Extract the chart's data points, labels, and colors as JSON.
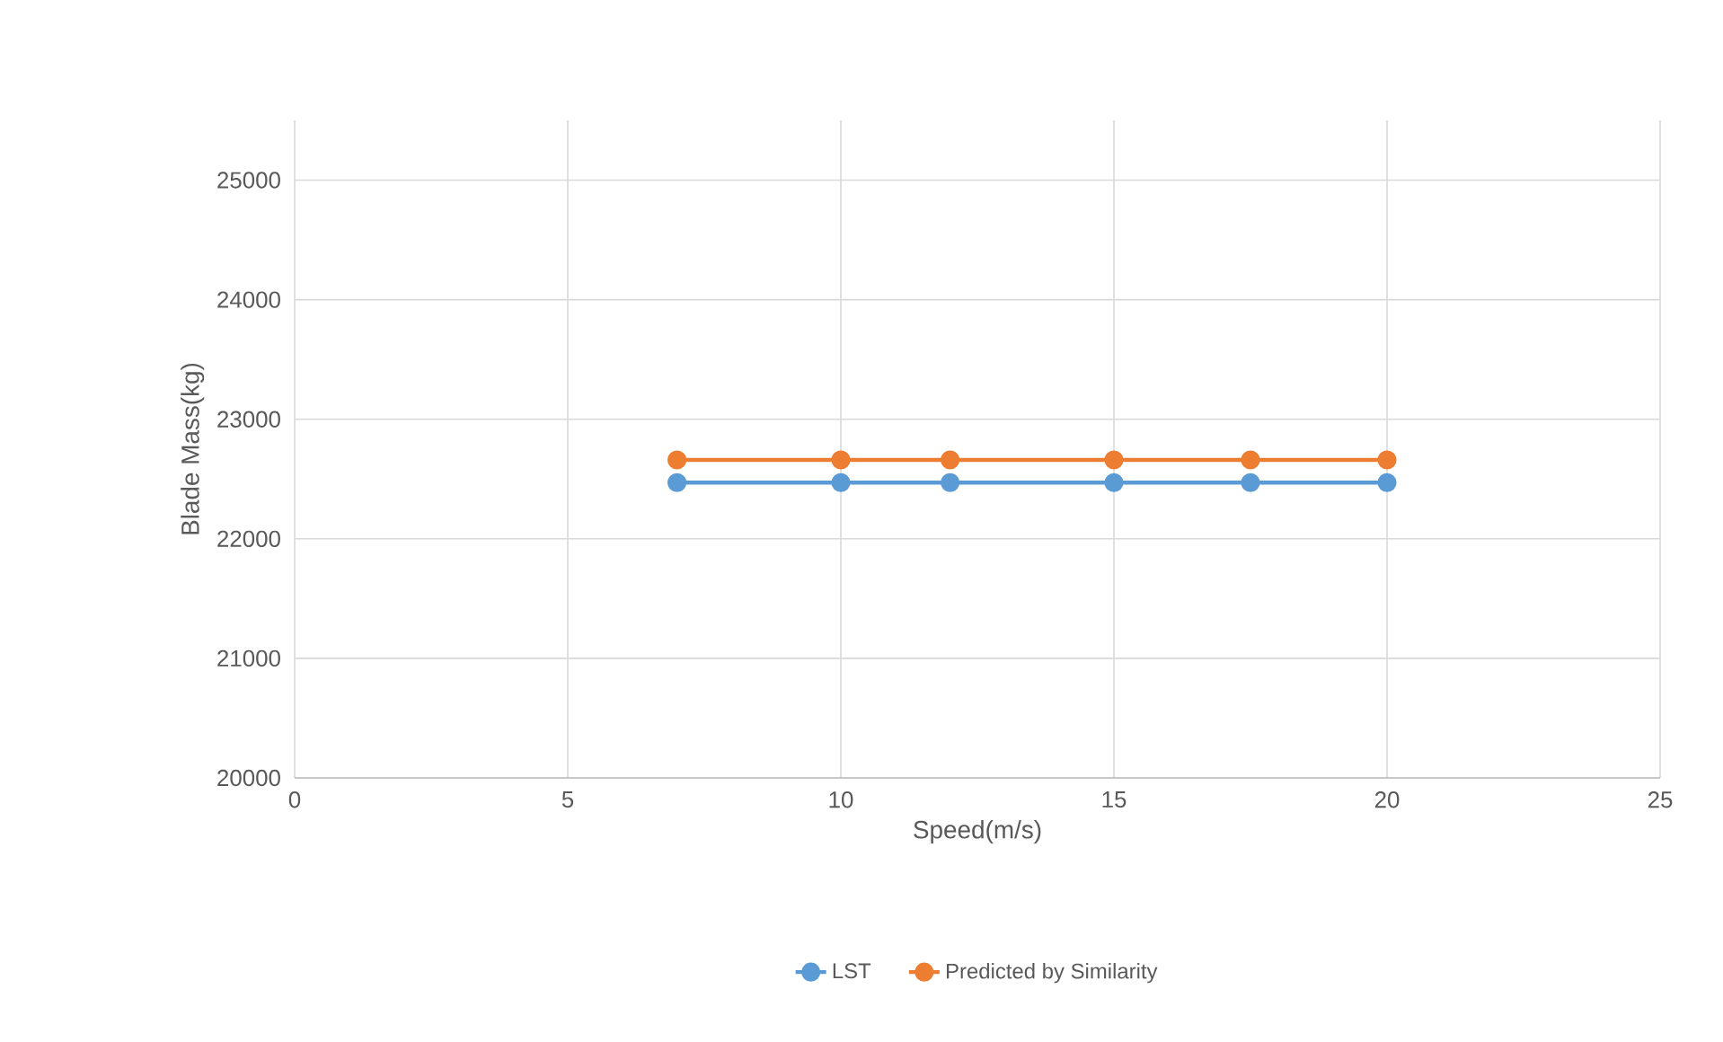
{
  "chart_data": {
    "type": "line",
    "xlabel": "Speed(m/s)",
    "ylabel": "Blade Mass(kg)",
    "x": [
      7,
      10,
      12,
      15,
      17.5,
      20
    ],
    "series": [
      {
        "name": "LST",
        "color": "#5b9bd5",
        "values": [
          22470,
          22470,
          22470,
          22470,
          22470,
          22470
        ]
      },
      {
        "name": "Predicted by Similarity",
        "color": "#ed7d31",
        "values": [
          22660,
          22660,
          22660,
          22660,
          22660,
          22660
        ]
      }
    ],
    "xlim": [
      0,
      25
    ],
    "xticks": [
      0,
      5,
      10,
      15,
      20,
      25
    ],
    "ylim": [
      20000,
      25500
    ],
    "yticks": [
      20000,
      21000,
      22000,
      23000,
      24000,
      25000
    ],
    "grid": true,
    "legend": "bottom",
    "marker": "circle",
    "line_style": "solid"
  }
}
